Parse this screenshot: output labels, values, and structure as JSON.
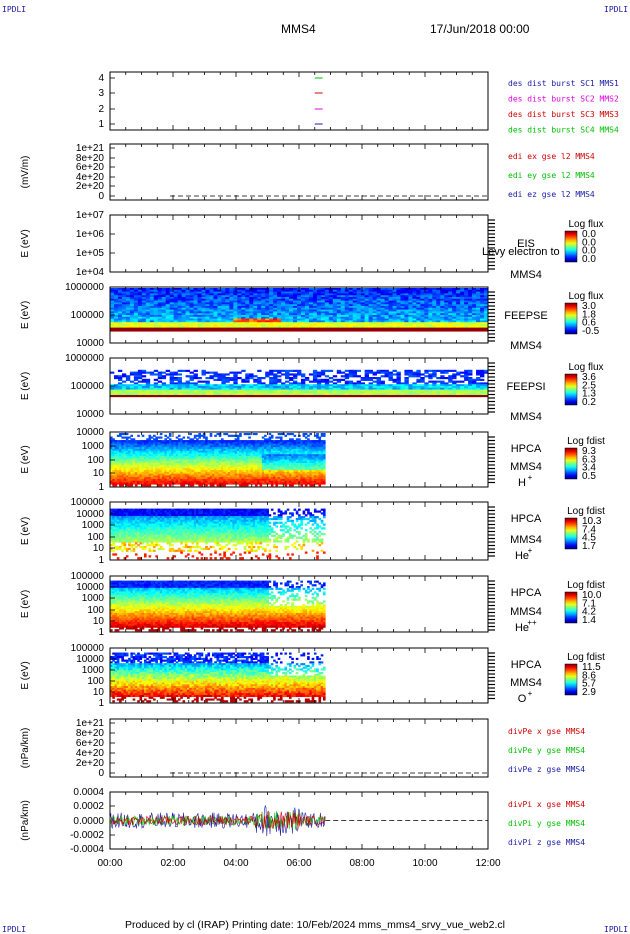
{
  "page": {
    "corner_label": "IPDLI",
    "spacecraft": "MMS4",
    "date_time": "17/Jun/2018 00:00",
    "footer": "Produced by cl (IRAP)   Printing date: 10/Feb/2024   mms_mms4_srvy_vue_web2.cl"
  },
  "colors": {
    "mms1": "#1a1aa6",
    "mms2": "#e000e0",
    "mms3": "#d00000",
    "mms4": "#00c000",
    "x": "#d00000",
    "y": "#00c000",
    "z": "#1a1aa6"
  },
  "chart_data": {
    "type": "multi-panel time series",
    "x_axis": {
      "range": [
        "00:00",
        "12:00"
      ],
      "ticks": [
        "00:00",
        "02:00",
        "04:00",
        "06:00",
        "08:00",
        "10:00",
        "12:00"
      ]
    },
    "data_end_time": "06:50",
    "panels": [
      {
        "id": "burst",
        "type": "timeline",
        "yticks": [
          "4",
          "3",
          "2",
          "1"
        ],
        "legend": [
          "des dist burst SC1 MMS1",
          "des dist burst SC2 MMS2",
          "des dist burst SC3 MMS3",
          "des dist burst SC4 MMS4"
        ],
        "legend_colors": [
          "mms1",
          "mms2",
          "mms3",
          "mms4"
        ],
        "marks": [
          {
            "level": 4,
            "color": "mms4"
          },
          {
            "level": 3,
            "color": "mms3"
          },
          {
            "level": 2,
            "color": "mms2"
          },
          {
            "level": 1,
            "color": "mms1"
          }
        ],
        "mark_time": [
          "06:30",
          "06:45"
        ]
      },
      {
        "id": "edi",
        "type": "line",
        "ylabel": "(mV/m)",
        "yticks": [
          "1e+21",
          "8e+20",
          "6e+20",
          "4e+20",
          "2e+20",
          "0"
        ],
        "legend": [
          "edi ex gse l2 MMS4",
          "edi ey gse l2 MMS4",
          "edi ez gse l2 MMS4"
        ],
        "legend_colors": [
          "x",
          "y",
          "z"
        ],
        "zero_line": true
      },
      {
        "id": "eis",
        "type": "spectrogram",
        "ylabel": "E (eV)",
        "yticks": [
          "1e+07",
          "1e+06",
          "1e+05",
          "1e+04"
        ],
        "instrument": [
          "EIS",
          "MMS4"
        ],
        "overlay_text": "Levy electron to",
        "colorbar_title": "Log flux",
        "colorbar_ticks": [
          "0.0",
          "0.0",
          "0.0",
          "0.0"
        ]
      },
      {
        "id": "feepse",
        "type": "spectrogram",
        "ylabel": "E (eV)",
        "yticks": [
          "1000000",
          "100000",
          "10000"
        ],
        "instrument": [
          "FEEPSE",
          "MMS4"
        ],
        "colorbar_title": "Log flux",
        "colorbar_ticks": [
          "3.0",
          "1.8",
          "0.6",
          "-0.5"
        ]
      },
      {
        "id": "feepsi",
        "type": "spectrogram",
        "ylabel": "E (eV)",
        "yticks": [
          "1000000",
          "100000",
          "10000"
        ],
        "instrument": [
          "FEEPSI",
          "MMS4"
        ],
        "colorbar_title": "Log flux",
        "colorbar_ticks": [
          "3.6",
          "2.5",
          "1.3",
          "0.2"
        ]
      },
      {
        "id": "hpca-h",
        "type": "spectrogram",
        "ylabel": "E (eV)",
        "yticks": [
          "10000",
          "1000",
          "100",
          "10",
          "1"
        ],
        "instrument": [
          "HPCA",
          "MMS4"
        ],
        "species": "H",
        "charge": "+",
        "colorbar_title": "Log fdist",
        "colorbar_ticks": [
          "9.3",
          "6.3",
          "3.4",
          "0.5"
        ]
      },
      {
        "id": "hpca-he",
        "type": "spectrogram",
        "ylabel": "E (eV)",
        "yticks": [
          "100000",
          "10000",
          "1000",
          "100",
          "10",
          "1"
        ],
        "instrument": [
          "HPCA",
          "MMS4"
        ],
        "species": "He",
        "charge": "+",
        "colorbar_title": "Log fdist",
        "colorbar_ticks": [
          "10.3",
          "7.4",
          "4.5",
          "1.7"
        ]
      },
      {
        "id": "hpca-hepp",
        "type": "spectrogram",
        "ylabel": "E (eV)",
        "yticks": [
          "100000",
          "10000",
          "1000",
          "100",
          "10",
          "1"
        ],
        "instrument": [
          "HPCA",
          "MMS4"
        ],
        "species": "He",
        "charge": "++",
        "colorbar_title": "Log fdist",
        "colorbar_ticks": [
          "10.0",
          "7.1",
          "4.2",
          "1.4"
        ]
      },
      {
        "id": "hpca-o",
        "type": "spectrogram",
        "ylabel": "E (eV)",
        "yticks": [
          "100000",
          "10000",
          "1000",
          "100",
          "10",
          "1"
        ],
        "instrument": [
          "HPCA",
          "MMS4"
        ],
        "species": "O",
        "charge": "+",
        "colorbar_title": "Log fdist",
        "colorbar_ticks": [
          "11.5",
          "8.6",
          "5.7",
          "2.9"
        ]
      },
      {
        "id": "divpe",
        "type": "line",
        "ylabel": "(nPa/km)",
        "yticks": [
          "1e+21",
          "8e+20",
          "6e+20",
          "4e+20",
          "2e+20",
          "0"
        ],
        "legend": [
          "divPe x gse MMS4",
          "divPe y gse MMS4",
          "divPe z gse MMS4"
        ],
        "legend_colors": [
          "x",
          "y",
          "z"
        ],
        "zero_line": true
      },
      {
        "id": "divpi",
        "type": "line",
        "ylabel": "(nPa/km)",
        "yticks": [
          "0.0004",
          "0.0002",
          "0.0000",
          "-0.0002",
          "-0.0004"
        ],
        "legend": [
          "divPi x gse MMS4",
          "divPi y gse MMS4",
          "divPi z gse MMS4"
        ],
        "legend_colors": [
          "x",
          "y",
          "z"
        ],
        "zero_line": true,
        "ylim": [
          -0.0005,
          0.0005
        ]
      }
    ]
  }
}
